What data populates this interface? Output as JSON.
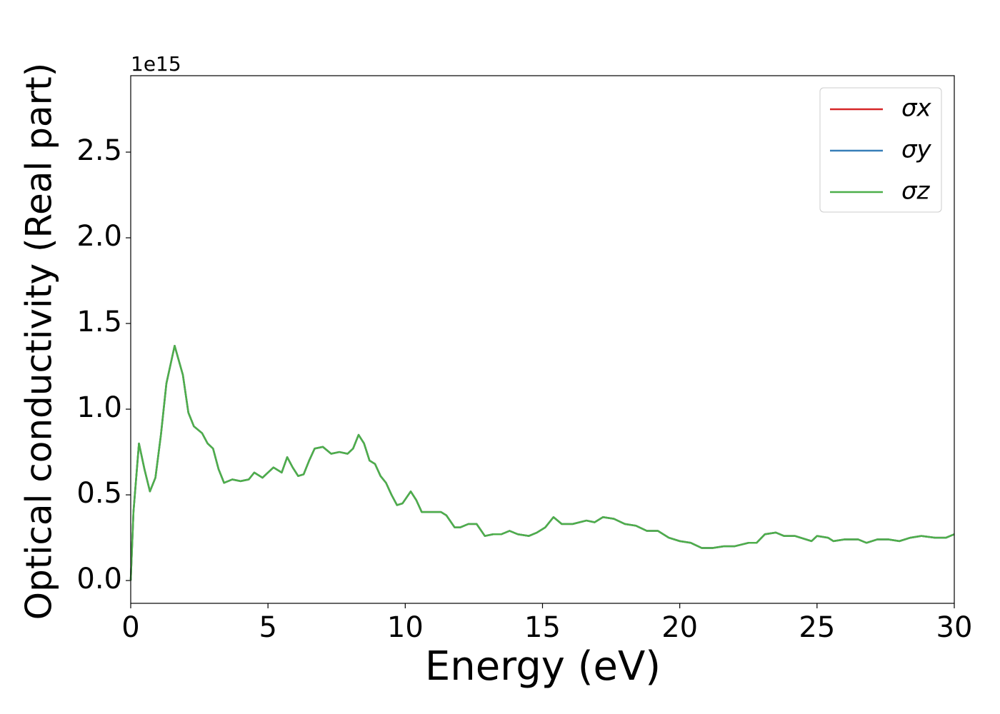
{
  "chart_data": {
    "type": "line",
    "xlabel": "Energy (eV)",
    "ylabel": "Optical conductivity (Real part)",
    "y_offset_label": "1e15",
    "x": [
      0,
      0.1,
      0.3,
      0.5,
      0.7,
      0.9,
      1.1,
      1.3,
      1.6,
      1.9,
      2.1,
      2.3,
      2.6,
      2.8,
      3.0,
      3.2,
      3.4,
      3.7,
      4.0,
      4.3,
      4.5,
      4.8,
      5.2,
      5.5,
      5.7,
      5.9,
      6.1,
      6.3,
      6.5,
      6.7,
      7.0,
      7.3,
      7.6,
      7.9,
      8.1,
      8.3,
      8.5,
      8.7,
      8.9,
      9.1,
      9.3,
      9.5,
      9.7,
      9.9,
      10.2,
      10.4,
      10.6,
      11.0,
      11.3,
      11.5,
      11.8,
      12.0,
      12.3,
      12.6,
      12.9,
      13.2,
      13.5,
      13.8,
      14.1,
      14.5,
      14.8,
      15.1,
      15.4,
      15.7,
      16.1,
      16.6,
      16.9,
      17.2,
      17.6,
      18.0,
      18.4,
      18.8,
      19.2,
      19.6,
      20.0,
      20.4,
      20.8,
      21.2,
      21.6,
      22.0,
      22.5,
      22.8,
      23.1,
      23.5,
      23.8,
      24.2,
      24.8,
      25.0,
      25.4,
      25.6,
      26.0,
      26.5,
      26.8,
      27.2,
      27.6,
      28.0,
      28.4,
      28.8,
      29.3,
      29.7,
      30.0
    ],
    "series": [
      {
        "name": "σx",
        "color": "#d62728",
        "values": [
          0,
          0.4,
          0.8,
          0.65,
          0.52,
          0.6,
          0.85,
          1.15,
          1.37,
          1.2,
          0.98,
          0.9,
          0.86,
          0.8,
          0.77,
          0.65,
          0.57,
          0.59,
          0.58,
          0.59,
          0.63,
          0.6,
          0.66,
          0.63,
          0.72,
          0.66,
          0.61,
          0.62,
          0.7,
          0.77,
          0.78,
          0.74,
          0.75,
          0.74,
          0.77,
          0.85,
          0.8,
          0.7,
          0.68,
          0.61,
          0.57,
          0.5,
          0.44,
          0.45,
          0.52,
          0.47,
          0.4,
          0.4,
          0.4,
          0.38,
          0.31,
          0.31,
          0.33,
          0.33,
          0.26,
          0.27,
          0.27,
          0.29,
          0.27,
          0.26,
          0.28,
          0.31,
          0.37,
          0.33,
          0.33,
          0.35,
          0.34,
          0.37,
          0.36,
          0.33,
          0.32,
          0.29,
          0.29,
          0.25,
          0.23,
          0.22,
          0.19,
          0.19,
          0.2,
          0.2,
          0.22,
          0.22,
          0.27,
          0.28,
          0.26,
          0.26,
          0.23,
          0.26,
          0.25,
          0.23,
          0.24,
          0.24,
          0.22,
          0.24,
          0.24,
          0.23,
          0.25,
          0.26,
          0.25,
          0.25,
          0.27
        ]
      },
      {
        "name": "σy",
        "color": "#377eb8",
        "values": [
          0,
          0.4,
          0.8,
          0.65,
          0.52,
          0.6,
          0.85,
          1.15,
          1.37,
          1.2,
          0.98,
          0.9,
          0.86,
          0.8,
          0.77,
          0.65,
          0.57,
          0.59,
          0.58,
          0.59,
          0.63,
          0.6,
          0.66,
          0.63,
          0.72,
          0.66,
          0.61,
          0.62,
          0.7,
          0.77,
          0.78,
          0.74,
          0.75,
          0.74,
          0.77,
          0.85,
          0.8,
          0.7,
          0.68,
          0.61,
          0.57,
          0.5,
          0.44,
          0.45,
          0.52,
          0.47,
          0.4,
          0.4,
          0.4,
          0.38,
          0.31,
          0.31,
          0.33,
          0.33,
          0.26,
          0.27,
          0.27,
          0.29,
          0.27,
          0.26,
          0.28,
          0.31,
          0.37,
          0.33,
          0.33,
          0.35,
          0.34,
          0.37,
          0.36,
          0.33,
          0.32,
          0.29,
          0.29,
          0.25,
          0.23,
          0.22,
          0.19,
          0.19,
          0.2,
          0.2,
          0.22,
          0.22,
          0.27,
          0.28,
          0.26,
          0.26,
          0.23,
          0.26,
          0.25,
          0.23,
          0.24,
          0.24,
          0.22,
          0.24,
          0.24,
          0.23,
          0.25,
          0.26,
          0.25,
          0.25,
          0.27
        ]
      },
      {
        "name": "σz",
        "color": "#4daf4a",
        "values": [
          0,
          0.4,
          0.8,
          0.65,
          0.52,
          0.6,
          0.85,
          1.15,
          1.37,
          1.2,
          0.98,
          0.9,
          0.86,
          0.8,
          0.77,
          0.65,
          0.57,
          0.59,
          0.58,
          0.59,
          0.63,
          0.6,
          0.66,
          0.63,
          0.72,
          0.66,
          0.61,
          0.62,
          0.7,
          0.77,
          0.78,
          0.74,
          0.75,
          0.74,
          0.77,
          0.85,
          0.8,
          0.7,
          0.68,
          0.61,
          0.57,
          0.5,
          0.44,
          0.45,
          0.52,
          0.47,
          0.4,
          0.4,
          0.4,
          0.38,
          0.31,
          0.31,
          0.33,
          0.33,
          0.26,
          0.27,
          0.27,
          0.29,
          0.27,
          0.26,
          0.28,
          0.31,
          0.37,
          0.33,
          0.33,
          0.35,
          0.34,
          0.37,
          0.36,
          0.33,
          0.32,
          0.29,
          0.29,
          0.25,
          0.23,
          0.22,
          0.19,
          0.19,
          0.2,
          0.2,
          0.22,
          0.22,
          0.27,
          0.28,
          0.26,
          0.26,
          0.23,
          0.26,
          0.25,
          0.23,
          0.24,
          0.24,
          0.22,
          0.24,
          0.24,
          0.23,
          0.25,
          0.26,
          0.25,
          0.25,
          0.27
        ]
      }
    ],
    "xlim": [
      0,
      30
    ],
    "xticks": [
      0,
      5,
      10,
      15,
      20,
      25,
      30
    ],
    "ylim": [
      -0.133,
      2.946
    ],
    "yticks": [
      {
        "value": 0,
        "label": "0.0"
      },
      0.5,
      {
        "value": 1,
        "label": "1.0"
      },
      1.5,
      {
        "value": 2,
        "label": "2.0"
      },
      2.5
    ],
    "grid": false,
    "legend": "upper right"
  }
}
